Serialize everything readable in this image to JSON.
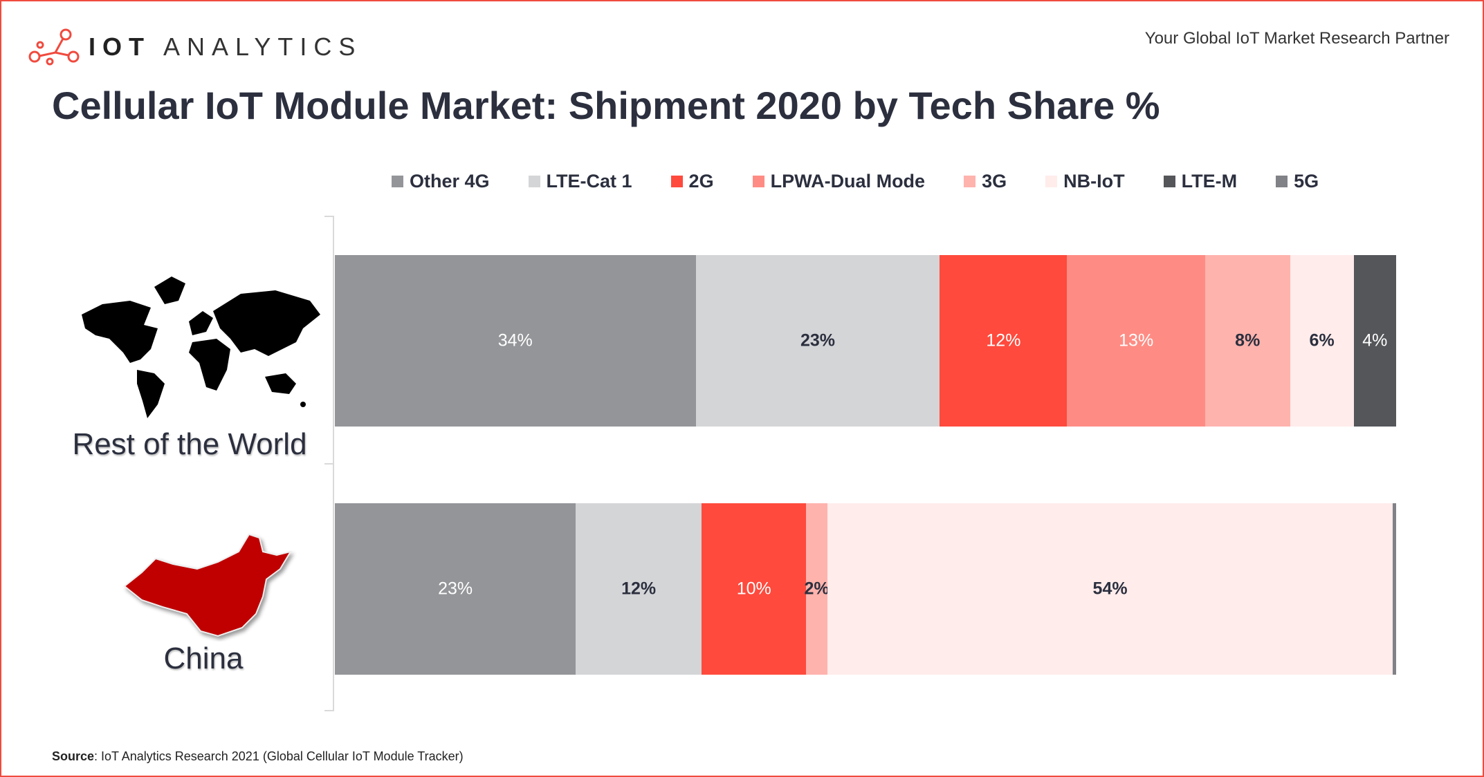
{
  "brand": {
    "logo_bold": "IOT",
    "logo_light": "ANALYTICS",
    "tagline": "Your Global IoT Market Research Partner"
  },
  "footer": {
    "source_label": "Source",
    "source_text": ": IoT Analytics Research 2021 (Global Cellular IoT Module Tracker)"
  },
  "chart_data": {
    "type": "bar",
    "orientation": "horizontal-stacked-100",
    "title": "Cellular IoT Module Market: Shipment 2020 by Tech Share %",
    "legend_position": "top",
    "categories": [
      "Rest of the World",
      "China"
    ],
    "series": [
      {
        "name": "Other 4G",
        "color": "#939598",
        "values": [
          34,
          23
        ],
        "labels": [
          "34%",
          "23%"
        ],
        "label_color": "#ffffff"
      },
      {
        "name": "LTE-Cat 1",
        "color": "#d4d5d7",
        "values": [
          23,
          12
        ],
        "labels": [
          "23%",
          "12%"
        ],
        "label_color": "#2b2f3e"
      },
      {
        "name": "2G",
        "color": "#ff4a3d",
        "values": [
          12,
          10
        ],
        "labels": [
          "12%",
          "10%"
        ],
        "label_color": "#ffffff"
      },
      {
        "name": "LPWA-Dual Mode",
        "color": "#ff8c84",
        "values": [
          13,
          0
        ],
        "labels": [
          "13%",
          ""
        ],
        "label_color": "#ffffff"
      },
      {
        "name": "3G",
        "color": "#ffb3ad",
        "values": [
          8,
          2
        ],
        "labels": [
          "8%",
          "2%"
        ],
        "label_color": "#2b2f3e"
      },
      {
        "name": "NB-IoT",
        "color": "#ffeceb",
        "values": [
          6,
          54
        ],
        "labels": [
          "6%",
          "54%"
        ],
        "label_color": "#2b2f3e"
      },
      {
        "name": "LTE-M",
        "color": "#55565a",
        "values": [
          4,
          0
        ],
        "labels": [
          "4%",
          ""
        ],
        "label_color": "#ffffff"
      },
      {
        "name": "5G",
        "color": "#808288",
        "values": [
          0,
          0.3
        ],
        "labels": [
          "",
          ""
        ],
        "label_color": "#ffffff"
      }
    ]
  }
}
